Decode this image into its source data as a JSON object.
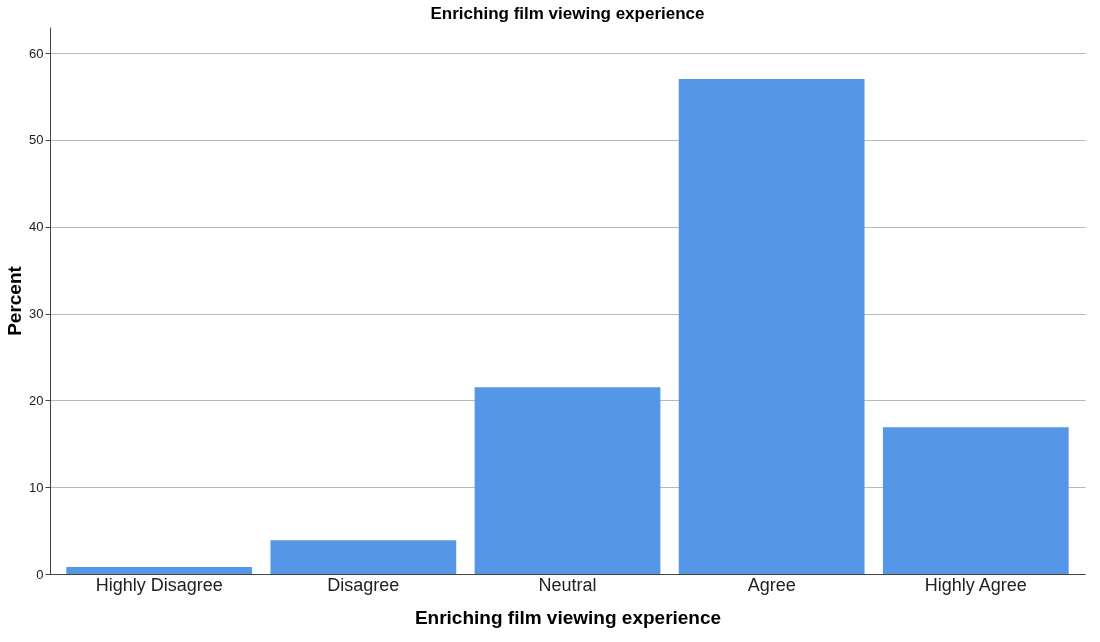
{
  "chart_data": {
    "type": "bar",
    "title": "Enriching film viewing experience",
    "xlabel": "Enriching film viewing experience",
    "ylabel": "Percent",
    "categories": [
      "Highly Disagree",
      "Disagree",
      "Neutral",
      "Agree",
      "Highly Agree"
    ],
    "values": [
      0.8,
      3.9,
      21.5,
      57.0,
      16.9
    ],
    "color": "#5596e6",
    "ylim": [
      0,
      63
    ],
    "yticks": [
      0,
      10,
      20,
      30,
      40,
      50,
      60
    ],
    "grid": "y"
  }
}
